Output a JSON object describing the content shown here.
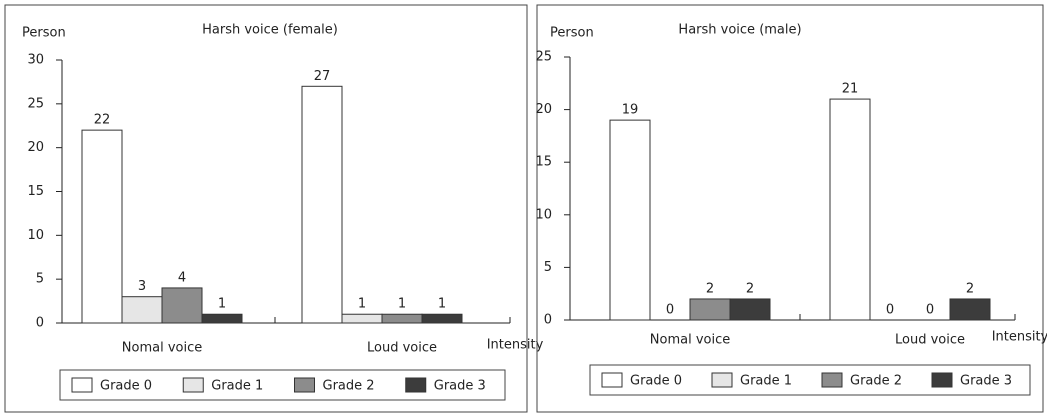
{
  "chart_data": [
    {
      "type": "bar",
      "title": "Harsh voice (female)",
      "y_label": "Person",
      "x_label": "Intensity",
      "categories": [
        "Nomal voice",
        "Loud voice"
      ],
      "series": [
        {
          "name": "Grade 0",
          "color": "#ffffff",
          "values": [
            22,
            27
          ]
        },
        {
          "name": "Grade 1",
          "color": "#e6e6e6",
          "values": [
            3,
            1
          ]
        },
        {
          "name": "Grade 2",
          "color": "#8c8c8c",
          "values": [
            4,
            1
          ]
        },
        {
          "name": "Grade 3",
          "color": "#3c3c3c",
          "values": [
            1,
            1
          ]
        }
      ],
      "ylim": [
        0,
        30
      ],
      "yticks": [
        0,
        5,
        10,
        15,
        20,
        25,
        30
      ],
      "grid": false,
      "legend": "bottom"
    },
    {
      "type": "bar",
      "title": "Harsh voice (male)",
      "y_label": "Person",
      "x_label": "Intensity",
      "categories": [
        "Nomal voice",
        "Loud voice"
      ],
      "series": [
        {
          "name": "Grade 0",
          "color": "#ffffff",
          "values": [
            19,
            21
          ]
        },
        {
          "name": "Grade 1",
          "color": "#e6e6e6",
          "values": [
            0,
            0
          ]
        },
        {
          "name": "Grade 2",
          "color": "#8c8c8c",
          "values": [
            2,
            0
          ]
        },
        {
          "name": "Grade 3",
          "color": "#3c3c3c",
          "values": [
            2,
            2
          ]
        }
      ],
      "ylim": [
        0,
        25
      ],
      "yticks": [
        0,
        5,
        10,
        15,
        20,
        25
      ],
      "grid": false,
      "legend": "bottom"
    }
  ]
}
